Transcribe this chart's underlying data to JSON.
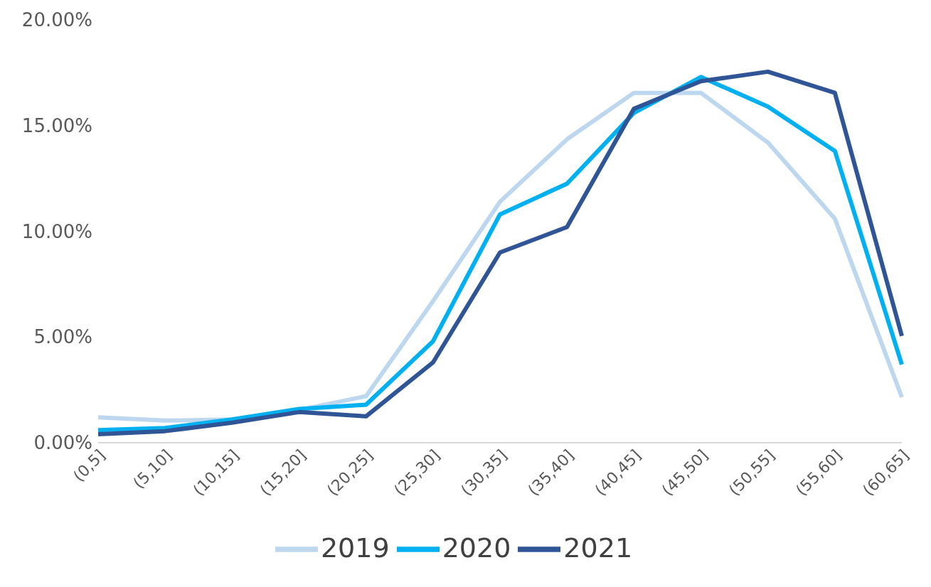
{
  "chart_data": {
    "type": "line",
    "categories": [
      "(0,5]",
      "(5,10]",
      "(10,15]",
      "(15,20]",
      "(20,25]",
      "(25,30]",
      "(30,35]",
      "(35,40]",
      "(40,45]",
      "(45,50]",
      "(50,55]",
      "(55,60]",
      "(60,65]"
    ],
    "series": [
      {
        "name": "2019",
        "color": "#bdd7ee",
        "values": [
          1.2,
          1.05,
          1.1,
          1.55,
          2.2,
          6.7,
          11.4,
          14.35,
          16.55,
          16.55,
          14.2,
          10.6,
          2.15
        ]
      },
      {
        "name": "2020",
        "color": "#00b0f0",
        "values": [
          0.6,
          0.7,
          1.1,
          1.6,
          1.8,
          4.8,
          10.8,
          12.25,
          15.6,
          17.3,
          15.9,
          13.8,
          3.7
        ]
      },
      {
        "name": "2021",
        "color": "#2f5597",
        "values": [
          0.4,
          0.55,
          0.95,
          1.45,
          1.25,
          3.8,
          9.0,
          10.2,
          15.8,
          17.1,
          17.55,
          16.55,
          5.05
        ]
      }
    ],
    "ylim": [
      0,
      20
    ],
    "yticks": [
      {
        "value": 0,
        "label": "0.00%"
      },
      {
        "value": 5,
        "label": "5.00%"
      },
      {
        "value": 10,
        "label": "10.00%"
      },
      {
        "value": 15,
        "label": "15.00%"
      },
      {
        "value": 20,
        "label": "20.00%"
      }
    ],
    "grid": false,
    "legend": "bottom",
    "marker": "none",
    "line_style": "solid"
  }
}
